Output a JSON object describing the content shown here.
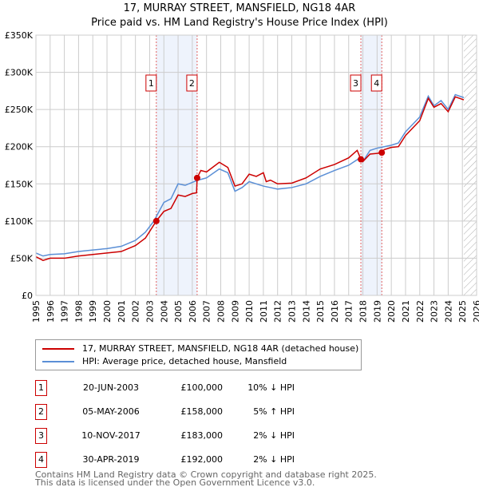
{
  "title": "17, MURRAY STREET, MANSFIELD, NG18 4AR",
  "subtitle": "Price paid vs. HM Land Registry's House Price Index (HPI)",
  "chart_data": {
    "type": "line",
    "xlim": [
      1995,
      2026
    ],
    "ylim": [
      0,
      350000
    ],
    "y_ticks": [
      {
        "v": 0,
        "l": "£0"
      },
      {
        "v": 50000,
        "l": "£50K"
      },
      {
        "v": 100000,
        "l": "£100K"
      },
      {
        "v": 150000,
        "l": "£150K"
      },
      {
        "v": 200000,
        "l": "£200K"
      },
      {
        "v": 250000,
        "l": "£250K"
      },
      {
        "v": 300000,
        "l": "£300K"
      },
      {
        "v": 350000,
        "l": "£350K"
      }
    ],
    "x_ticks": [
      1995,
      1996,
      1997,
      1998,
      1999,
      2000,
      2001,
      2002,
      2003,
      2004,
      2005,
      2006,
      2007,
      2008,
      2009,
      2010,
      2011,
      2012,
      2013,
      2014,
      2015,
      2016,
      2017,
      2018,
      2019,
      2020,
      2021,
      2022,
      2023,
      2024,
      2025,
      2026
    ],
    "series": [
      {
        "name": "17, MURRAY STREET, MANSFIELD, NG18 4AR (detached house)",
        "color": "#cc0000",
        "x": [
          1995,
          1995.5,
          1996,
          1997,
          1998,
          1999,
          2000,
          2001,
          2002,
          2002.7,
          2003.47,
          2004,
          2004.5,
          2005,
          2005.5,
          2006,
          2006.3,
          2006.34,
          2006.6,
          2007,
          2007.9,
          2008.5,
          2009,
          2009.5,
          2010,
          2010.5,
          2011,
          2011.2,
          2011.5,
          2012,
          2013,
          2014,
          2015,
          2016,
          2017,
          2017.6,
          2017.86,
          2018,
          2018.5,
          2019,
          2019.33,
          2019.5,
          2020,
          2020.5,
          2021,
          2022,
          2022.6,
          2023,
          2023.5,
          2024,
          2024.5,
          2025.1
        ],
        "y": [
          52,
          47,
          50,
          50,
          53,
          55,
          57,
          59,
          67,
          77,
          100,
          113,
          117,
          135,
          133,
          137,
          138,
          158,
          168,
          166,
          179,
          172,
          147,
          150,
          163,
          160,
          165,
          153,
          155,
          150,
          151,
          158,
          170,
          176,
          185,
          195,
          183,
          180,
          190,
          191,
          192,
          196,
          199,
          200,
          215,
          235,
          265,
          253,
          258,
          247,
          267,
          263
        ]
      },
      {
        "name": "HPI: Average price, detached house, Mansfield",
        "color": "#5b8fd6",
        "x": [
          1995,
          1995.5,
          1996,
          1997,
          1998,
          1999,
          2000,
          2001,
          2002,
          2002.7,
          2003.3,
          2004,
          2004.5,
          2005,
          2005.5,
          2006,
          2006.4,
          2007,
          2007.9,
          2008.5,
          2009,
          2009.5,
          2010,
          2010.5,
          2011,
          2011.5,
          2012,
          2013,
          2014,
          2015,
          2016,
          2017,
          2017.8,
          2018,
          2018.5,
          2019,
          2019.5,
          2020,
          2020.5,
          2021,
          2022,
          2022.6,
          2023,
          2023.5,
          2024,
          2024.5,
          2025.1
        ],
        "y": [
          57,
          53,
          55,
          56,
          59,
          61,
          63,
          66,
          74,
          85,
          100,
          125,
          130,
          150,
          148,
          152,
          155,
          158,
          170,
          165,
          140,
          145,
          153,
          150,
          147,
          145,
          143,
          145,
          150,
          160,
          168,
          175,
          185,
          180,
          195,
          198,
          200,
          202,
          205,
          220,
          240,
          268,
          255,
          262,
          250,
          270,
          266
        ]
      }
    ],
    "y_unit_multiplier": 1000,
    "sales": [
      {
        "n": "1",
        "x": 2003.47,
        "y": 100000,
        "date": "20-JUN-2003",
        "price": "£100,000",
        "hpi": "10% ↓ HPI"
      },
      {
        "n": "2",
        "x": 2006.34,
        "y": 158000,
        "date": "05-MAY-2006",
        "price": "£158,000",
        "hpi": "5% ↑ HPI"
      },
      {
        "n": "3",
        "x": 2017.86,
        "y": 183000,
        "date": "10-NOV-2017",
        "price": "£183,000",
        "hpi": "2% ↓ HPI"
      },
      {
        "n": "4",
        "x": 2019.33,
        "y": 192000,
        "date": "30-APR-2019",
        "price": "£192,000",
        "hpi": "2% ↓ HPI"
      }
    ],
    "shaded": [
      [
        2003.47,
        2006.34
      ],
      [
        2017.86,
        2019.33
      ]
    ],
    "forecast_from": 2025.1
  },
  "footer": [
    "Contains HM Land Registry data © Crown copyright and database right 2025.",
    "This data is licensed under the Open Government Licence v3.0."
  ]
}
